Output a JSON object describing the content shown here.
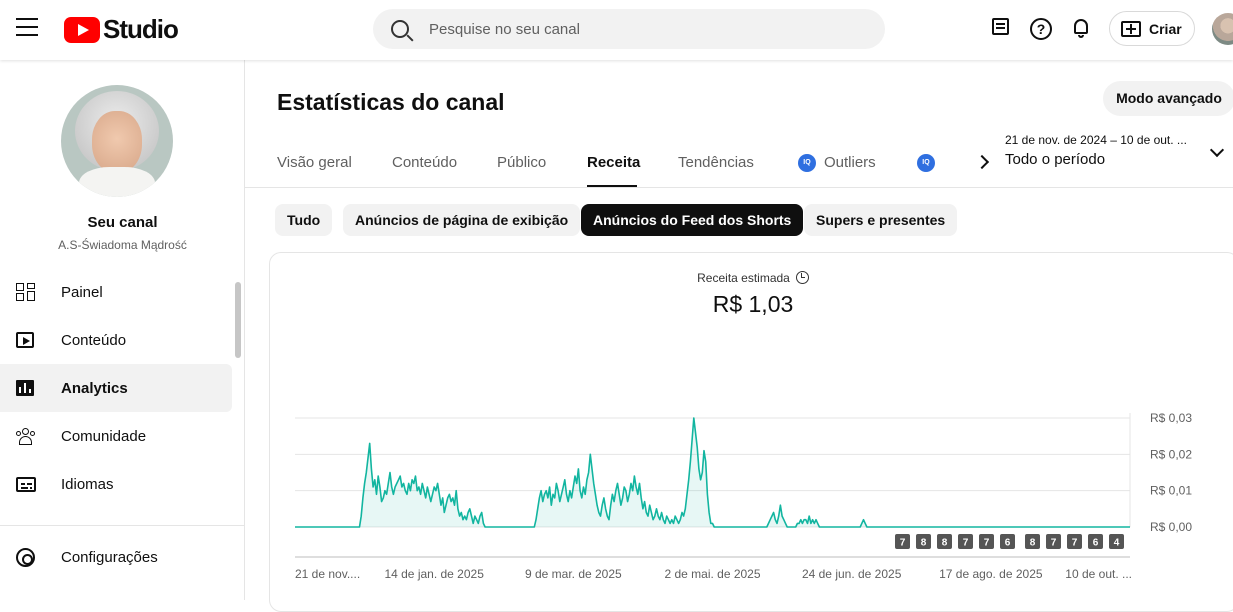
{
  "header": {
    "logo_text": "Studio",
    "search_placeholder": "Pesquise no seu canal",
    "create_label": "Criar",
    "icons": [
      "menu-icon",
      "youtube-logo-icon",
      "search-icon",
      "feedback-icon",
      "help-icon",
      "bell-icon",
      "create-icon"
    ]
  },
  "sidebar": {
    "channel_name": "Seu canal",
    "channel_handle": "A.S-Świadoma Mądrość",
    "items": [
      {
        "label": "Painel",
        "icon": "dashboard-icon"
      },
      {
        "label": "Conteúdo",
        "icon": "content-icon"
      },
      {
        "label": "Analytics",
        "icon": "analytics-icon",
        "active": true
      },
      {
        "label": "Comunidade",
        "icon": "community-icon"
      },
      {
        "label": "Idiomas",
        "icon": "subtitles-icon"
      }
    ],
    "settings_label": "Configurações"
  },
  "main": {
    "title": "Estatísticas do canal",
    "advanced_button": "Modo avançado",
    "tabs": [
      "Visão geral",
      "Conteúdo",
      "Público",
      "Receita",
      "Tendências",
      "Outliers"
    ],
    "active_tab": "Receita",
    "date_range": "21 de nov. de 2024 – 10 de out. ...",
    "date_period": "Todo o período",
    "chips": [
      "Tudo",
      "Anúncios de página de exibição",
      "Anúncios do Feed dos Shorts",
      "Supers e presentes"
    ],
    "active_chip": "Anúncios do Feed dos Shorts",
    "metric_label": "Receita estimada",
    "metric_value": "R$ 1,03",
    "accent_color": "#12b5a0"
  },
  "chart_data": {
    "type": "area",
    "y_ticks": [
      "R$ 0,03",
      "R$ 0,02",
      "R$ 0,01",
      "R$ 0,00"
    ],
    "ylim": [
      0,
      0.03
    ],
    "x_ticks": [
      "21 de nov....",
      "14 de jan. de 2025",
      "9 de mar. de 2025",
      "2 de mai. de 2025",
      "24 de jun. de 2025",
      "17 de ago. de 2025",
      "10 de out. ..."
    ],
    "markers": [
      "7",
      "8",
      "8",
      "7",
      "7",
      "6",
      "8",
      "7",
      "7",
      "6",
      "4"
    ],
    "values": [
      0,
      0,
      0,
      0,
      0,
      0,
      0,
      0,
      0,
      0,
      0,
      0,
      0,
      0,
      0,
      0,
      0,
      0,
      0,
      0,
      0,
      0,
      0,
      0,
      0,
      0,
      0,
      0,
      0,
      0,
      0,
      0,
      0,
      0,
      0,
      0,
      0,
      0,
      0,
      0.003,
      0.008,
      0.012,
      0.015,
      0.019,
      0.023,
      0.016,
      0.011,
      0.013,
      0.009,
      0.014,
      0.011,
      0.007,
      0.008,
      0.01,
      0.009,
      0.012,
      0.015,
      0.011,
      0.009,
      0.011,
      0.012,
      0.013,
      0.014,
      0.011,
      0.012,
      0.01,
      0.009,
      0.012,
      0.01,
      0.013,
      0.012,
      0.014,
      0.01,
      0.011,
      0.009,
      0.012,
      0.01,
      0.008,
      0.011,
      0.009,
      0.007,
      0.009,
      0.011,
      0.01,
      0.012,
      0.009,
      0.006,
      0.008,
      0.004,
      0.006,
      0.008,
      0.009,
      0.007,
      0.008,
      0.006,
      0.01,
      0.005,
      0.003,
      0.004,
      0.002,
      0.003,
      0.002,
      0.004,
      0.005,
      0.003,
      0.001,
      0.003,
      0.002,
      0.001,
      0.003,
      0.004,
      0.001,
      0,
      0,
      0,
      0,
      0,
      0,
      0,
      0,
      0,
      0,
      0,
      0,
      0,
      0,
      0,
      0,
      0,
      0,
      0,
      0,
      0,
      0,
      0,
      0,
      0,
      0,
      0,
      0,
      0,
      0,
      0.002,
      0.005,
      0.008,
      0.01,
      0.007,
      0.009,
      0.01,
      0.008,
      0.011,
      0.006,
      0.009,
      0.008,
      0.012,
      0.01,
      0.007,
      0.009,
      0.011,
      0.013,
      0.009,
      0.007,
      0.01,
      0.008,
      0.011,
      0.014,
      0.012,
      0.016,
      0.01,
      0.008,
      0.011,
      0.009,
      0.013,
      0.015,
      0.02,
      0.016,
      0.012,
      0.009,
      0.006,
      0.004,
      0.003,
      0.006,
      0.008,
      0.005,
      0.003,
      0.002,
      0.006,
      0.009,
      0.007,
      0.01,
      0.012,
      0.009,
      0.006,
      0.008,
      0.011,
      0.01,
      0.007,
      0.009,
      0.012,
      0.01,
      0.014,
      0.011,
      0.009,
      0.012,
      0.008,
      0.005,
      0.007,
      0.004,
      0.003,
      0.006,
      0.004,
      0.002,
      0.003,
      0.005,
      0.003,
      0.002,
      0.004,
      0.002,
      0.001,
      0.003,
      0.002,
      0.001,
      0.002,
      0.001,
      0.003,
      0.002,
      0.001,
      0.002,
      0.004,
      0.003,
      0.005,
      0.009,
      0.013,
      0.018,
      0.024,
      0.03,
      0.026,
      0.022,
      0.016,
      0.013,
      0.015,
      0.021,
      0.018,
      0.009,
      0.004,
      0.001,
      0.001,
      0,
      0,
      0,
      0,
      0,
      0,
      0,
      0,
      0,
      0,
      0,
      0,
      0,
      0,
      0,
      0,
      0,
      0,
      0,
      0,
      0,
      0,
      0,
      0,
      0,
      0,
      0,
      0,
      0,
      0,
      0,
      0,
      0.001,
      0.002,
      0.003,
      0.004,
      0.002,
      0.001,
      0.003,
      0.006,
      0.003,
      0.002,
      0.001,
      0,
      0,
      0,
      0,
      0,
      0,
      0.001,
      0.001,
      0.002,
      0.001,
      0.002,
      0.002,
      0.001,
      0.003,
      0.001,
      0.002,
      0.001,
      0.002,
      0.001,
      0,
      0,
      0,
      0,
      0,
      0,
      0,
      0,
      0,
      0,
      0,
      0,
      0,
      0,
      0,
      0,
      0,
      0,
      0,
      0,
      0,
      0,
      0,
      0,
      0,
      0.001,
      0.002,
      0.001,
      0,
      0,
      0,
      0,
      0,
      0,
      0,
      0,
      0,
      0,
      0,
      0,
      0,
      0,
      0,
      0,
      0,
      0,
      0,
      0,
      0,
      0,
      0,
      0,
      0,
      0,
      0,
      0,
      0,
      0,
      0,
      0,
      0,
      0,
      0,
      0,
      0,
      0,
      0,
      0,
      0,
      0,
      0,
      0,
      0,
      0,
      0,
      0,
      0,
      0,
      0,
      0,
      0,
      0,
      0,
      0,
      0,
      0,
      0,
      0,
      0,
      0,
      0,
      0,
      0,
      0,
      0,
      0,
      0,
      0,
      0,
      0,
      0,
      0,
      0,
      0,
      0,
      0,
      0,
      0,
      0,
      0,
      0,
      0,
      0,
      0,
      0,
      0,
      0,
      0,
      0,
      0,
      0,
      0,
      0,
      0,
      0,
      0,
      0,
      0,
      0,
      0,
      0,
      0,
      0,
      0,
      0,
      0,
      0,
      0,
      0,
      0,
      0,
      0,
      0,
      0,
      0,
      0,
      0,
      0,
      0,
      0,
      0,
      0,
      0,
      0,
      0,
      0,
      0,
      0,
      0,
      0,
      0,
      0,
      0,
      0,
      0,
      0,
      0,
      0,
      0,
      0,
      0,
      0,
      0,
      0,
      0,
      0,
      0,
      0,
      0,
      0,
      0,
      0,
      0,
      0
    ]
  }
}
